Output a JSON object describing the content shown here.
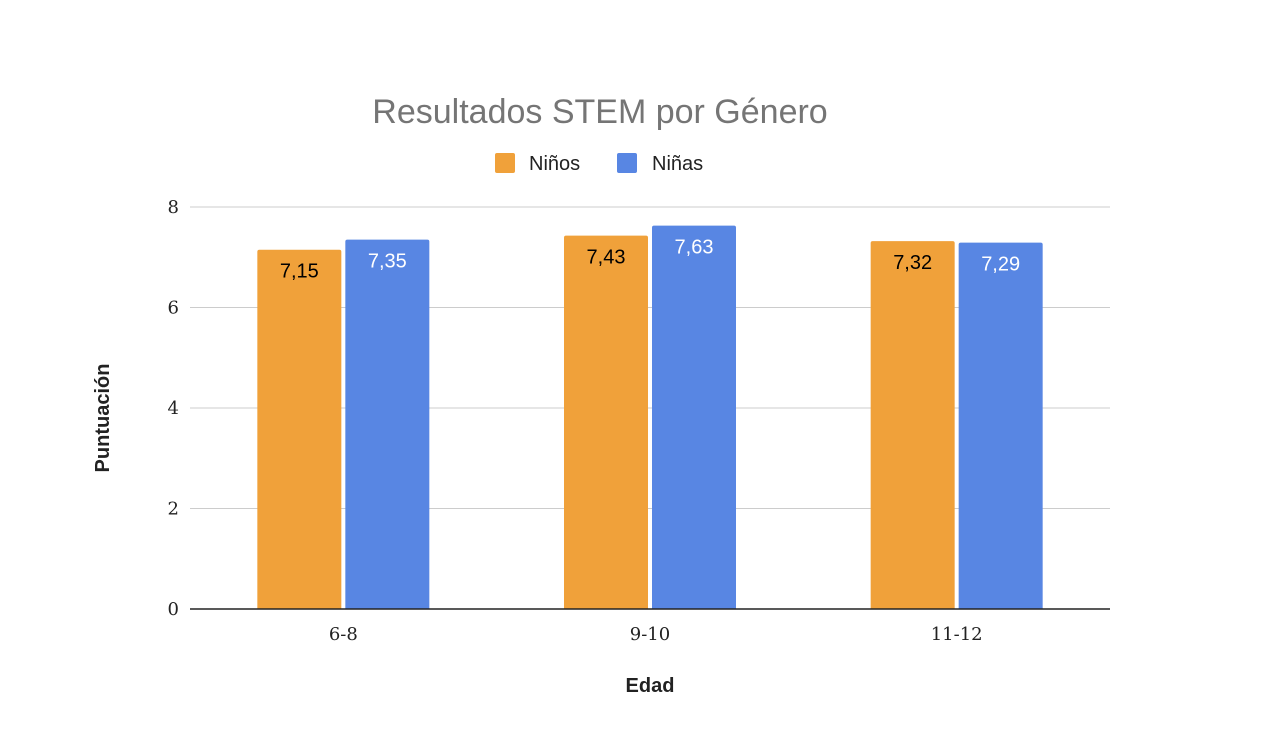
{
  "chart_data": {
    "type": "bar",
    "title": "Resultados STEM por Género",
    "xlabel": "Edad",
    "ylabel": "Puntuación",
    "categories": [
      "6-8",
      "9-10",
      "11-12"
    ],
    "series": [
      {
        "name": "Niños",
        "color": "#F0A13A",
        "label_color": "#000000",
        "values": [
          7.15,
          7.43,
          7.32
        ],
        "labels": [
          "7,15",
          "7,43",
          "7,32"
        ]
      },
      {
        "name": "Niñas",
        "color": "#5886E3",
        "label_color": "#ffffff",
        "values": [
          7.35,
          7.63,
          7.29
        ],
        "labels": [
          "7,35",
          "7,63",
          "7,29"
        ]
      }
    ],
    "ylim": [
      0,
      8
    ],
    "yticks": [
      "0",
      "2",
      "4",
      "6",
      "8"
    ],
    "grid": true,
    "legend_position": "top-center",
    "gridline_color": "#cccccc",
    "axis_color": "#222222"
  }
}
